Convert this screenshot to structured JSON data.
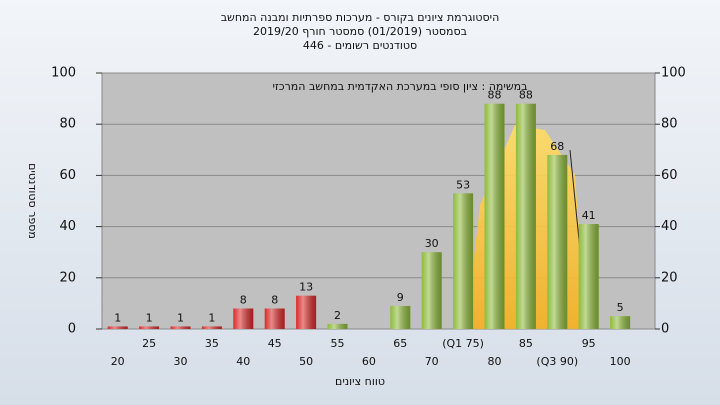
{
  "chart_data": {
    "type": "bar",
    "title_lines": [
      "היסטוגרמת ציונים בקורס - מערכות ספרתיות ומבנה המחשב",
      "בסמסטר (01/2019) סמסטר חורף 2019/20",
      "סטודנטים רשומים - 446"
    ],
    "annotation": "במשימה : ציון סופי במערכת האקדמית במחשב המרכזי",
    "y_label": "מספר סטודנטים",
    "x_label": "טווח ציונים",
    "categories": [
      "20",
      "25",
      "30",
      "35",
      "40",
      "45",
      "50",
      "55",
      "60",
      "65",
      "70",
      "(Q1 75)",
      "80",
      "85",
      "(Q3 90)",
      "95",
      "100"
    ],
    "values": [
      1,
      1,
      1,
      1,
      8,
      8,
      13,
      2,
      null,
      9,
      30,
      53,
      88,
      88,
      68,
      41,
      5
    ],
    "colors": [
      "#d92b2b",
      "#d92b2b",
      "#d92b2b",
      "#d92b2b",
      "#d92b2b",
      "#d92b2b",
      "#d92b2b",
      "#8fba3c",
      "#8fba3c",
      "#8fba3c",
      "#8fba3c",
      "#8fba3c",
      "#8fba3c",
      "#8fba3c",
      "#8fba3c",
      "#8fba3c",
      "#8fba3c"
    ],
    "ylim": [
      0,
      100
    ],
    "yticks": [
      0,
      20,
      40,
      60,
      80,
      100
    ],
    "y2lim": [
      0,
      100
    ],
    "y2ticks": [
      0,
      20,
      40,
      60,
      80,
      100
    ],
    "grid": true
  }
}
